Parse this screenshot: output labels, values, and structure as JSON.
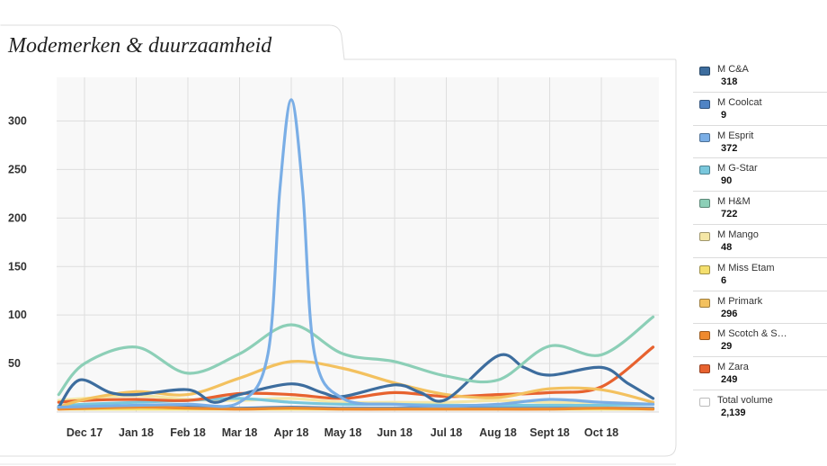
{
  "title": "Modemerken & duurzaamheid",
  "colors": {
    "plot_bg": "#f8f8f8",
    "grid": "#dedede",
    "frame": "#d8d8d8"
  },
  "chart_data": {
    "type": "line",
    "x": [
      "Dec 17",
      "Jan 18",
      "Feb 18",
      "Mar 18",
      "Apr 18",
      "May 18",
      "Jun 18",
      "Jul 18",
      "Aug 18",
      "Sept 18",
      "Oct 18"
    ],
    "y_ticks": [
      50,
      100,
      150,
      200,
      250,
      300
    ],
    "ylim": [
      0,
      345
    ],
    "grid": true,
    "legend_position": "right",
    "series": [
      {
        "name": "M C&A",
        "count": "318",
        "color": "#3d6d9e",
        "points": [
          [
            -0.5,
            5
          ],
          [
            -0.1,
            33
          ],
          [
            0.5,
            20
          ],
          [
            1,
            18
          ],
          [
            2,
            23
          ],
          [
            2.5,
            10
          ],
          [
            3,
            18
          ],
          [
            4,
            29
          ],
          [
            4.6,
            20
          ],
          [
            5,
            16
          ],
          [
            6,
            28
          ],
          [
            6.5,
            20
          ],
          [
            7,
            13
          ],
          [
            8,
            58
          ],
          [
            8.5,
            46
          ],
          [
            9,
            38
          ],
          [
            10,
            46
          ],
          [
            10.5,
            30
          ],
          [
            11,
            14
          ]
        ]
      },
      {
        "name": "M Coolcat",
        "count": "9",
        "color": "#4f83c4",
        "points": [
          [
            -0.5,
            4
          ],
          [
            1,
            4
          ],
          [
            2,
            5
          ],
          [
            3,
            4
          ],
          [
            4,
            5
          ],
          [
            5,
            4
          ],
          [
            6,
            4
          ],
          [
            7,
            4
          ],
          [
            8,
            4
          ],
          [
            9,
            4
          ],
          [
            10,
            4
          ],
          [
            11,
            4
          ]
        ]
      },
      {
        "name": "M Esprit",
        "count": "372",
        "color": "#7aaee6",
        "points": [
          [
            -0.5,
            5
          ],
          [
            1,
            7
          ],
          [
            2,
            8
          ],
          [
            3,
            10
          ],
          [
            3.55,
            60
          ],
          [
            3.78,
            230
          ],
          [
            4,
            322
          ],
          [
            4.22,
            230
          ],
          [
            4.45,
            60
          ],
          [
            5,
            14
          ],
          [
            6,
            8
          ],
          [
            7,
            6
          ],
          [
            8,
            8
          ],
          [
            9,
            13
          ],
          [
            10,
            10
          ],
          [
            11,
            8
          ]
        ]
      },
      {
        "name": "M G-Star",
        "count": "90",
        "color": "#79c7dc",
        "points": [
          [
            -0.5,
            6
          ],
          [
            0,
            8
          ],
          [
            1,
            10
          ],
          [
            2,
            12
          ],
          [
            3,
            14
          ],
          [
            4,
            10
          ],
          [
            5,
            8
          ],
          [
            6,
            8
          ],
          [
            7,
            7
          ],
          [
            8,
            7
          ],
          [
            9,
            7
          ],
          [
            10,
            7
          ],
          [
            11,
            8
          ]
        ]
      },
      {
        "name": "M H&M",
        "count": "722",
        "color": "#8ccfb7",
        "points": [
          [
            -0.5,
            18
          ],
          [
            0,
            50
          ],
          [
            1,
            67
          ],
          [
            2,
            40
          ],
          [
            3,
            60
          ],
          [
            4,
            90
          ],
          [
            5,
            60
          ],
          [
            6,
            52
          ],
          [
            7,
            37
          ],
          [
            8,
            33
          ],
          [
            9,
            68
          ],
          [
            10,
            59
          ],
          [
            11,
            98
          ]
        ]
      },
      {
        "name": "M Mango",
        "count": "48",
        "color": "#f5e7a6",
        "points": [
          [
            -0.5,
            12
          ],
          [
            0,
            14
          ],
          [
            1,
            17
          ],
          [
            2,
            13
          ],
          [
            3,
            12
          ],
          [
            4,
            14
          ],
          [
            5,
            10
          ],
          [
            6,
            10
          ],
          [
            7,
            10
          ],
          [
            8,
            12
          ],
          [
            9,
            10
          ],
          [
            10,
            10
          ],
          [
            11,
            8
          ]
        ]
      },
      {
        "name": "M Miss Etam",
        "count": "6",
        "color": "#f4df6e",
        "points": [
          [
            -0.5,
            3
          ],
          [
            1,
            3
          ],
          [
            2,
            3
          ],
          [
            3,
            3
          ],
          [
            4,
            3
          ],
          [
            5,
            3
          ],
          [
            6,
            3
          ],
          [
            7,
            3
          ],
          [
            8,
            3
          ],
          [
            9,
            3
          ],
          [
            10,
            3
          ],
          [
            11,
            3
          ]
        ]
      },
      {
        "name": "M Primark",
        "count": "296",
        "color": "#f3c15f",
        "points": [
          [
            -0.5,
            5
          ],
          [
            0,
            13
          ],
          [
            1,
            21
          ],
          [
            2,
            18
          ],
          [
            3,
            35
          ],
          [
            4,
            52
          ],
          [
            5,
            45
          ],
          [
            6,
            30
          ],
          [
            7,
            18
          ],
          [
            8,
            15
          ],
          [
            9,
            24
          ],
          [
            10,
            23
          ],
          [
            11,
            10
          ]
        ]
      },
      {
        "name": "M Scotch & S…",
        "count": "29",
        "color": "#ef8a2e",
        "points": [
          [
            -0.5,
            3
          ],
          [
            1,
            5
          ],
          [
            2,
            4
          ],
          [
            3,
            3
          ],
          [
            4,
            4
          ],
          [
            5,
            3
          ],
          [
            6,
            3
          ],
          [
            7,
            3
          ],
          [
            8,
            3
          ],
          [
            9,
            3
          ],
          [
            10,
            4
          ],
          [
            11,
            3
          ]
        ]
      },
      {
        "name": "M Zara",
        "count": "249",
        "color": "#e7622f",
        "points": [
          [
            -0.5,
            10
          ],
          [
            0,
            12
          ],
          [
            1,
            13
          ],
          [
            2,
            12
          ],
          [
            3,
            19
          ],
          [
            4,
            18
          ],
          [
            5,
            14
          ],
          [
            6,
            20
          ],
          [
            7,
            16
          ],
          [
            8,
            18
          ],
          [
            9,
            20
          ],
          [
            10,
            26
          ],
          [
            11,
            67
          ]
        ]
      }
    ]
  },
  "legend": {
    "total_label": "Total volume",
    "total_count": "2,139",
    "total_color": "#ffffff"
  }
}
